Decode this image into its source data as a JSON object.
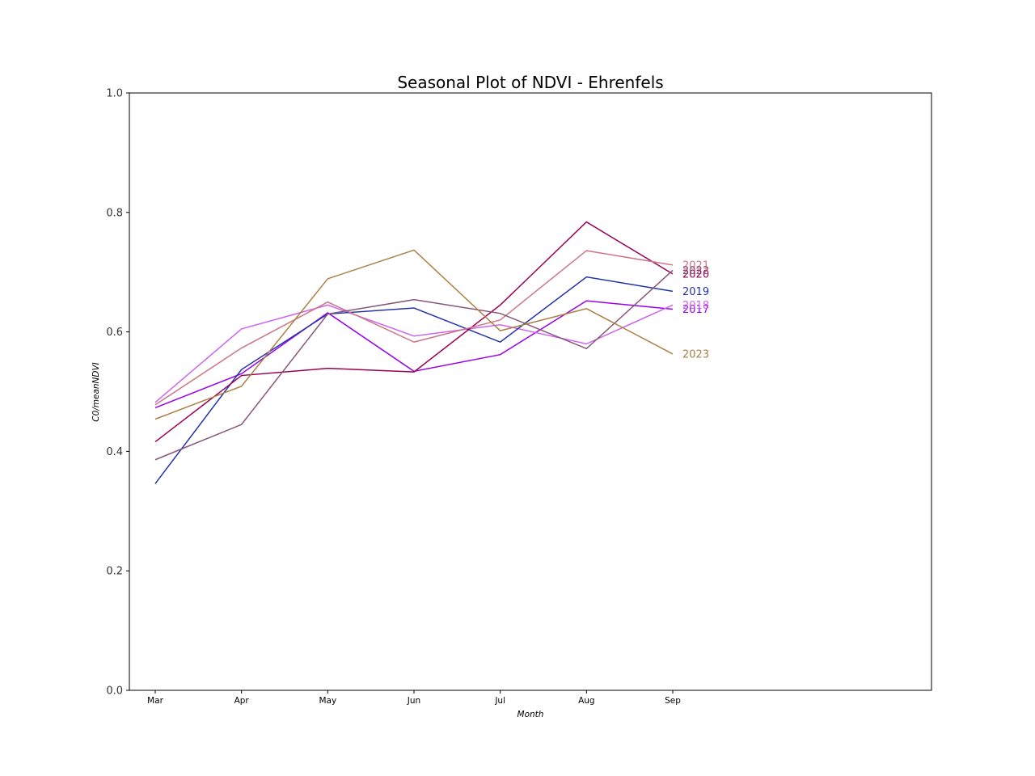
{
  "chart_data": {
    "type": "line",
    "title": "Seasonal Plot of NDVI - Ehrenfels",
    "xlabel": "Month",
    "ylabel": "C0/meanNDVI",
    "categories": [
      "Mar",
      "Apr",
      "May",
      "Jun",
      "Jul",
      "Aug",
      "Sep"
    ],
    "ylim": [
      0.0,
      1.0
    ],
    "yticks": [
      "0.0",
      "0.2",
      "0.4",
      "0.6",
      "0.8",
      "1.0"
    ],
    "ytick_values": [
      0.0,
      0.2,
      0.4,
      0.6,
      0.8,
      1.0
    ],
    "x_extent_categories": 9.3,
    "grid": false,
    "legend": "end-of-line labels",
    "series": [
      {
        "name": "2017",
        "color": "#9900ee",
        "values": [
          0.473,
          0.53,
          0.632,
          0.534,
          0.562,
          0.652,
          0.638
        ]
      },
      {
        "name": "2018",
        "color": "#cc66ee",
        "values": [
          0.482,
          0.605,
          0.645,
          0.593,
          0.612,
          0.58,
          0.645
        ]
      },
      {
        "name": "2019",
        "color": "#2233aa",
        "values": [
          0.346,
          0.537,
          0.63,
          0.64,
          0.583,
          0.692,
          0.668
        ]
      },
      {
        "name": "2020",
        "color": "#990055",
        "values": [
          0.416,
          0.527,
          0.539,
          0.533,
          0.645,
          0.784,
          0.697
        ]
      },
      {
        "name": "2021",
        "color": "#cc7788",
        "values": [
          0.478,
          0.573,
          0.65,
          0.583,
          0.62,
          0.736,
          0.712
        ]
      },
      {
        "name": "2022",
        "color": "#885577",
        "values": [
          0.386,
          0.445,
          0.63,
          0.654,
          0.631,
          0.572,
          0.703
        ]
      },
      {
        "name": "2023",
        "color": "#aa8044",
        "values": [
          0.454,
          0.509,
          0.689,
          0.737,
          0.602,
          0.639,
          0.563
        ]
      }
    ],
    "label_order_note": "labels drawn at the last point of each series"
  }
}
